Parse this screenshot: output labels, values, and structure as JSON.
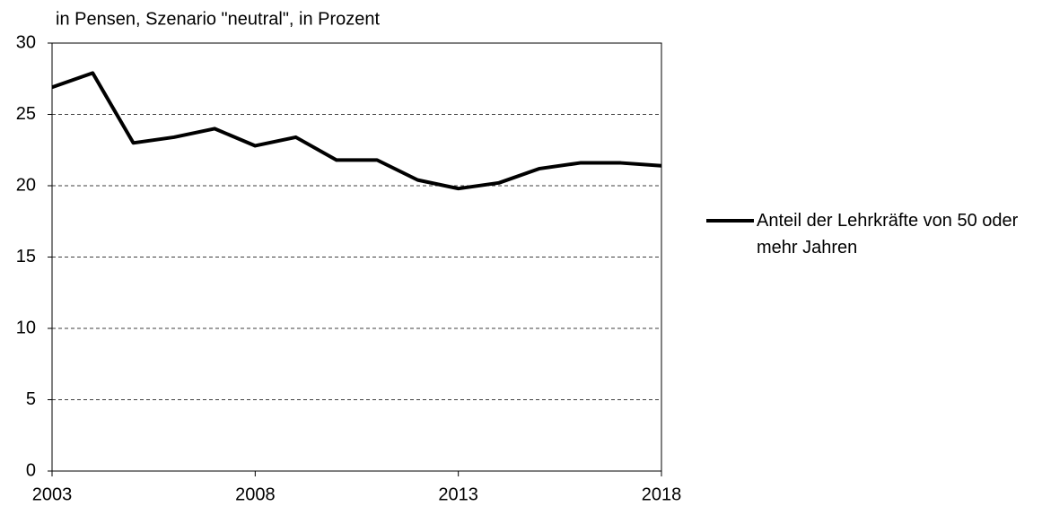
{
  "chart_data": {
    "type": "line",
    "title": "in Pensen, Szenario \"neutral\", in Prozent",
    "x": [
      2003,
      2004,
      2005,
      2006,
      2007,
      2008,
      2009,
      2010,
      2011,
      2012,
      2013,
      2014,
      2015,
      2016,
      2017,
      2018
    ],
    "series": [
      {
        "name": "Anteil der Lehrkräfte von 50 oder mehr Jahren",
        "color": "#000000",
        "values": [
          26.9,
          27.9,
          23.0,
          23.4,
          24.0,
          22.8,
          23.4,
          21.8,
          21.8,
          20.4,
          19.8,
          20.2,
          21.2,
          21.6,
          21.6,
          21.4
        ]
      }
    ],
    "xlim": [
      2003,
      2018
    ],
    "xticks": [
      2003,
      2008,
      2013,
      2018
    ],
    "ylim": [
      0,
      30
    ],
    "yticks": [
      0,
      5,
      10,
      15,
      20,
      25,
      30
    ],
    "grid": true,
    "legend": "right"
  }
}
